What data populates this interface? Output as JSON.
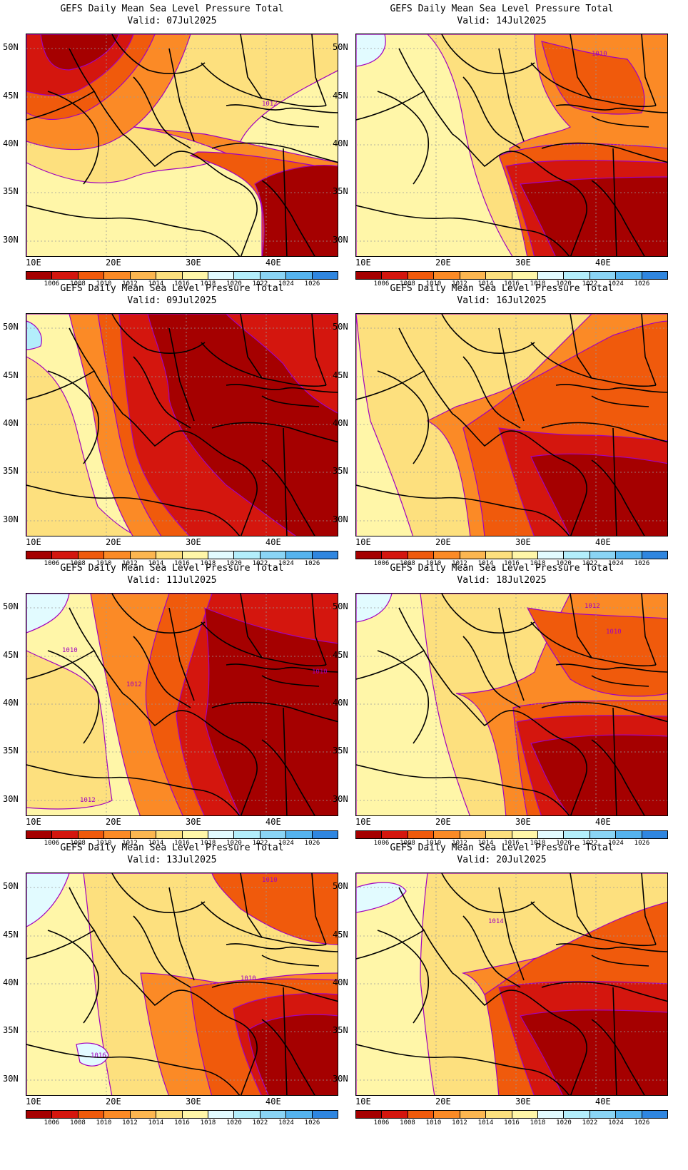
{
  "colorbar": {
    "labels": [
      "1006",
      "1008",
      "1010",
      "1012",
      "1014",
      "1016",
      "1018",
      "1020",
      "1022",
      "1024",
      "1026"
    ],
    "colors": [
      "#a50000",
      "#d4160e",
      "#f05a0c",
      "#fb8a26",
      "#fcb650",
      "#fde07e",
      "#fff6a8",
      "#e2fbff",
      "#b3eefb",
      "#8ad4f5",
      "#55b3ee",
      "#2f86e0"
    ]
  },
  "lat_labels": [
    "50N",
    "45N",
    "40N",
    "35N",
    "30N"
  ],
  "lon_labels": [
    "10E",
    "20E",
    "30E",
    "40E"
  ],
  "panels": [
    {
      "title": "GEFS Daily Mean Sea Level Pressure Total",
      "valid": "Valid:  07Jul2025",
      "contour_labels": [
        "1012"
      ]
    },
    {
      "title": "GEFS Daily Mean Sea Level Pressure Total",
      "valid": "Valid:  14Jul2025",
      "contour_labels": [
        "1010"
      ]
    },
    {
      "title": "GEFS Daily Mean Sea Level Pressure Total",
      "valid": "Valid:  09Jul2025",
      "contour_labels": []
    },
    {
      "title": "GEFS Daily Mean Sea Level Pressure Total",
      "valid": "Valid:  16Jul2025",
      "contour_labels": []
    },
    {
      "title": "GEFS Daily Mean Sea Level Pressure Total",
      "valid": "Valid:  11Jul2025",
      "contour_labels": [
        "1010",
        "1012",
        "1010",
        "1012"
      ]
    },
    {
      "title": "GEFS Daily Mean Sea Level Pressure Total",
      "valid": "Valid:  18Jul2025",
      "contour_labels": [
        "1012",
        "1010"
      ]
    },
    {
      "title": "GEFS Daily Mean Sea Level Pressure Total",
      "valid": "Valid:  13Jul2025",
      "contour_labels": [
        "1010",
        "1010",
        "1016"
      ]
    },
    {
      "title": "GEFS Daily Mean Sea Level Pressure Total",
      "valid": "Valid:  20Jul2025",
      "contour_labels": [
        "1014"
      ]
    }
  ]
}
